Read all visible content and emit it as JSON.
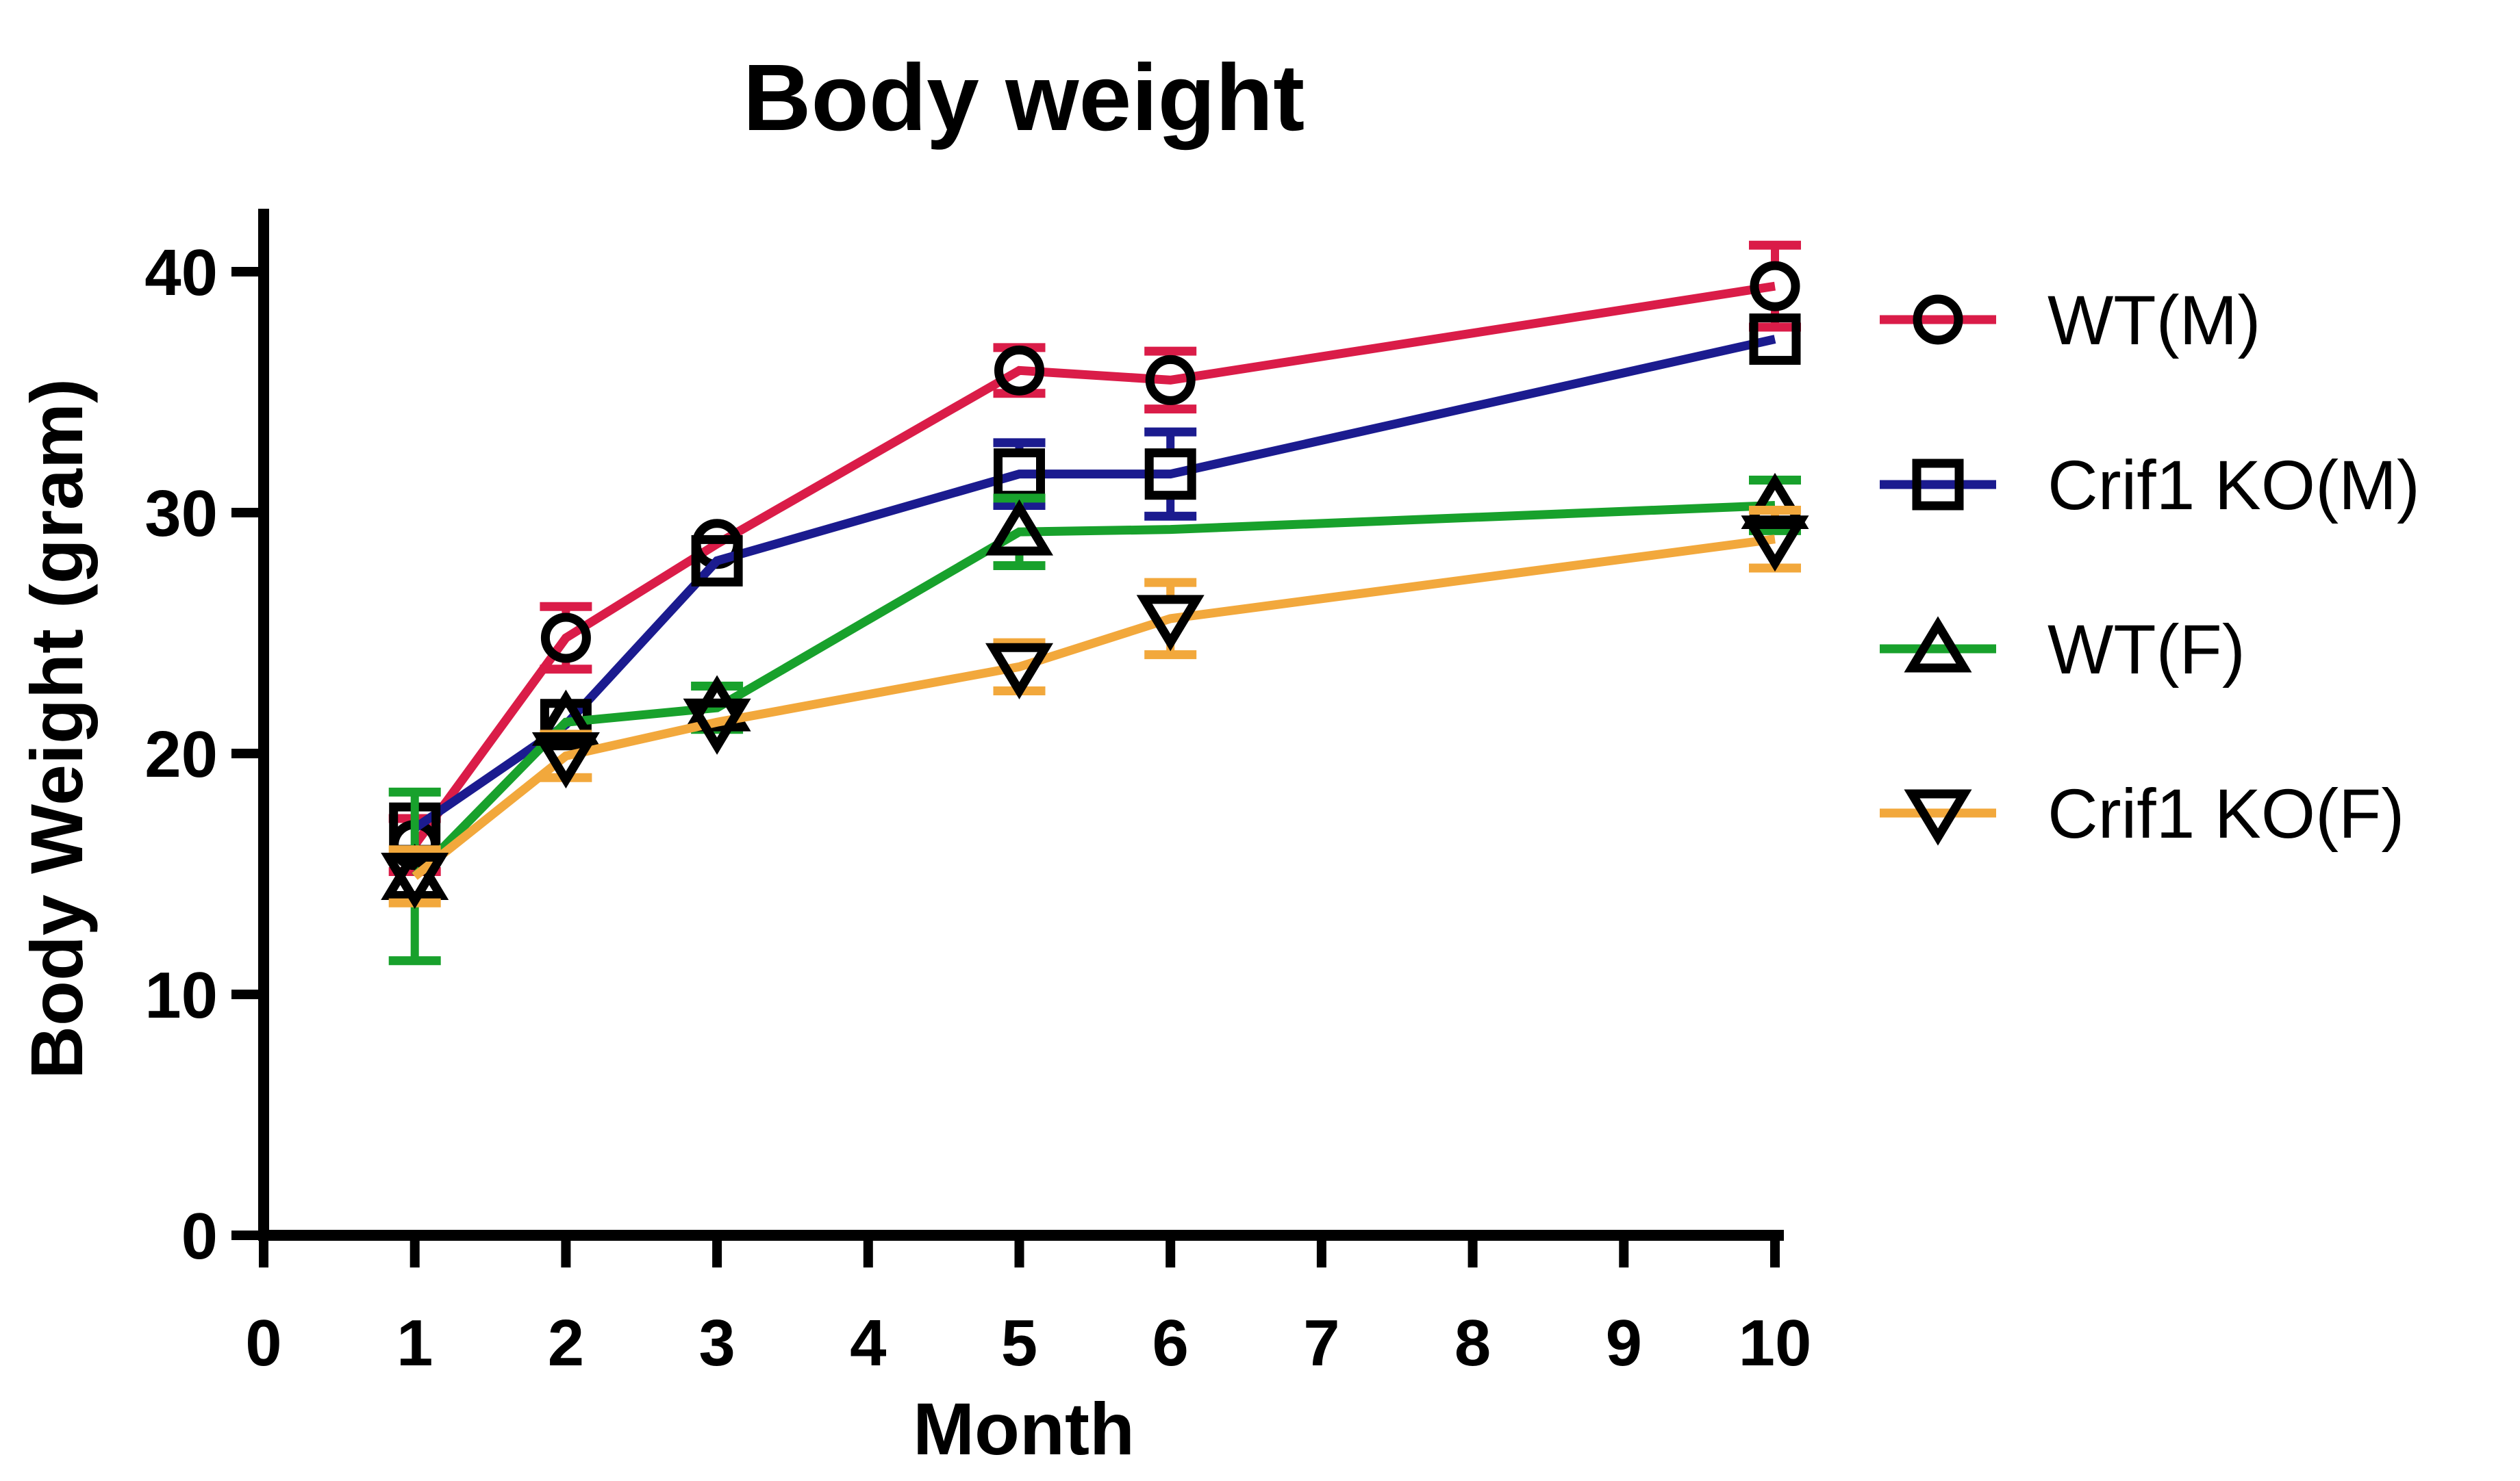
{
  "title": "Body weight",
  "axes": {
    "x": {
      "label": "Month",
      "ticks": [
        0,
        1,
        2,
        3,
        4,
        5,
        6,
        7,
        8,
        9,
        10
      ],
      "range": [
        0,
        10
      ]
    },
    "y": {
      "label": "Body Weight (gram)",
      "ticks": [
        0,
        10,
        20,
        30,
        40
      ],
      "range": [
        0,
        40
      ]
    }
  },
  "legend": {
    "items": [
      {
        "label": "WT(M)",
        "marker": "circle",
        "color": "#DA1C48"
      },
      {
        "label": "Crif1 KO(M)",
        "marker": "square",
        "color": "#1B1B8F"
      },
      {
        "label": "WT(F)",
        "marker": "triangle-up",
        "color": "#18A12C"
      },
      {
        "label": "Crif1 KO(F)",
        "marker": "triangle-down",
        "color": "#F2A83C"
      }
    ]
  },
  "chart_data": {
    "type": "line",
    "title": "Body weight",
    "xlabel": "Month",
    "ylabel": "Body Weight (gram)",
    "xlim": [
      0,
      10
    ],
    "ylim": [
      0,
      40
    ],
    "grid": false,
    "legend_position": "right",
    "x": [
      1,
      2,
      3,
      5,
      6,
      10
    ],
    "series": [
      {
        "name": "WT(M)",
        "marker": "circle",
        "color": "#DA1C48",
        "values": [
          16.2,
          24.8,
          28.7,
          35.9,
          35.5,
          39.4
        ],
        "errors": [
          1.1,
          1.3,
          0.4,
          0.95,
          1.2,
          1.7
        ],
        "hidden_marker_x": []
      },
      {
        "name": "Crif1 KO(M)",
        "marker": "square",
        "color": "#1B1B8F",
        "values": [
          16.9,
          21.2,
          28.0,
          31.6,
          31.6,
          37.2
        ],
        "errors": [
          0.6,
          0.7,
          0.5,
          1.3,
          1.75,
          0.5
        ],
        "hidden_marker_x": []
      },
      {
        "name": "WT(F)",
        "marker": "triangle-up",
        "color": "#18A12C",
        "values": [
          14.9,
          21.3,
          21.9,
          29.2,
          29.3,
          30.3
        ],
        "errors": [
          3.5,
          0.8,
          0.9,
          1.4,
          0,
          1.05
        ],
        "hidden_marker_x": [
          6
        ]
      },
      {
        "name": "Crif1 KO(F)",
        "marker": "triangle-down",
        "color": "#F2A83C",
        "values": [
          14.9,
          19.9,
          21.3,
          23.6,
          25.6,
          28.9
        ],
        "errors": [
          1.1,
          0.9,
          0.6,
          1.0,
          1.5,
          1.2
        ],
        "hidden_marker_x": []
      }
    ]
  },
  "style": {
    "marker_outline_color": "#000000",
    "axis_color": "#000000",
    "background": "#ffffff"
  }
}
